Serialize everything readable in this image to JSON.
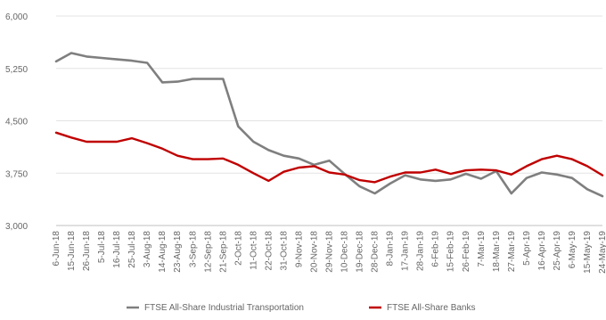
{
  "chart_data": {
    "type": "line",
    "title": "",
    "xlabel": "",
    "ylabel": "",
    "ylim": [
      3000,
      6000
    ],
    "yticks": [
      "6,000",
      "5,250",
      "4,500",
      "3,750",
      "3,000"
    ],
    "ytick_values": [
      6000,
      5250,
      4500,
      3750,
      3000
    ],
    "grid": "horizontal",
    "legend_position": "bottom",
    "x": [
      "6-Jun-18",
      "15-Jun-18",
      "26-Jun-18",
      "5-Jul-18",
      "16-Jul-18",
      "25-Jul-18",
      "3-Aug-18",
      "14-Aug-18",
      "23-Aug-18",
      "3-Sep-18",
      "12-Sep-18",
      "21-Sep-18",
      "2-Oct-18",
      "11-Oct-18",
      "22-Oct-18",
      "31-Oct-18",
      "9-Nov-18",
      "20-Nov-18",
      "29-Nov-18",
      "10-Dec-18",
      "19-Dec-18",
      "28-Dec-18",
      "8-Jan-19",
      "17-Jan-19",
      "28-Jan-19",
      "6-Feb-19",
      "15-Feb-19",
      "26-Feb-19",
      "7-Mar-19",
      "18-Mar-19",
      "27-Mar-19",
      "5-Apr-19",
      "16-Apr-19",
      "25-Apr-19",
      "6-May-19",
      "15-May-19",
      "24-May-19"
    ],
    "series": [
      {
        "name": "FTSE All-Share Industrial Transportation",
        "color": "#7f7f7f",
        "values": [
          5350,
          5470,
          5420,
          5400,
          5380,
          5360,
          5330,
          5050,
          5060,
          5100,
          5100,
          5100,
          4420,
          4200,
          4080,
          4000,
          3960,
          3870,
          3930,
          3740,
          3560,
          3460,
          3600,
          3720,
          3660,
          3640,
          3660,
          3740,
          3670,
          3780,
          3460,
          3680,
          3760,
          3730,
          3680,
          3520,
          3420
        ]
      },
      {
        "name": "FTSE All-Share Banks",
        "color": "#c00000",
        "values": [
          4330,
          4260,
          4200,
          4200,
          4200,
          4250,
          4180,
          4100,
          4000,
          3950,
          3950,
          3960,
          3870,
          3750,
          3640,
          3770,
          3830,
          3850,
          3760,
          3730,
          3650,
          3620,
          3700,
          3760,
          3760,
          3800,
          3740,
          3790,
          3800,
          3790,
          3730,
          3850,
          3950,
          4000,
          3950,
          3850,
          3720
        ]
      }
    ]
  }
}
